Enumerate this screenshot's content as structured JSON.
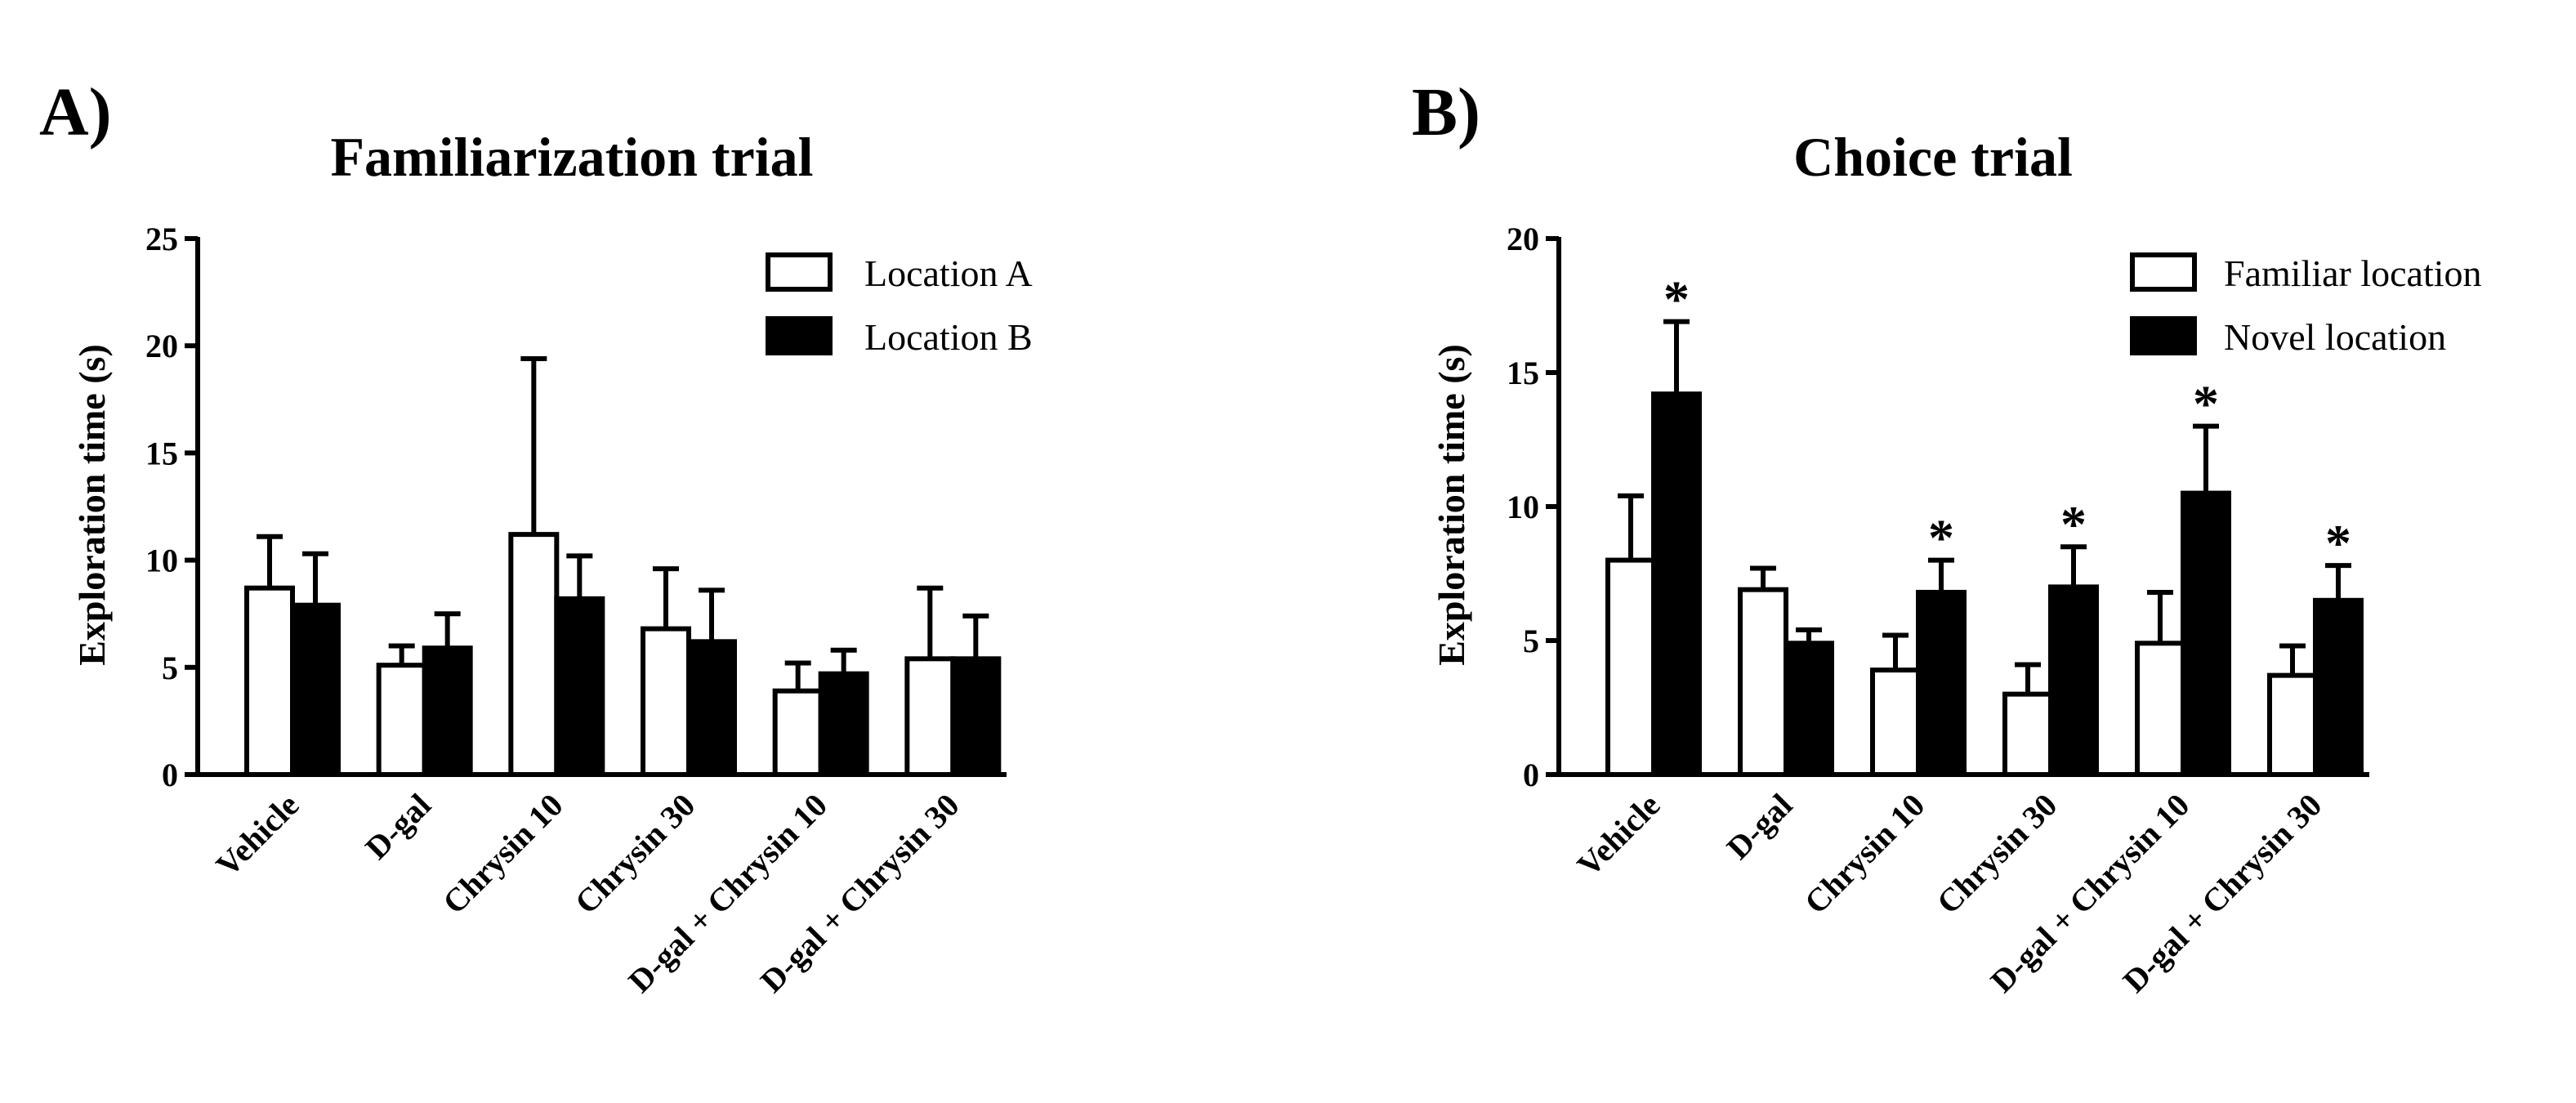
{
  "colors": {
    "open_bar": "#ffffff",
    "filled_bar": "#000000",
    "stroke": "#000000"
  },
  "chart_data": [
    {
      "type": "bar",
      "panel": "A)",
      "title": "Familiarization trial",
      "xlabel": "",
      "ylabel": "Exploration time (s)",
      "ylim": [
        0,
        25
      ],
      "yticks": [
        "0",
        "5",
        "10",
        "15",
        "20",
        "25"
      ],
      "categories": [
        "Vehicle",
        "D-gal",
        "Chrysin 10",
        "Chrysin 30",
        "D-gal + Chrysin 10",
        "D-gal + Chrysin 30"
      ],
      "legend_position": "top-right",
      "series": [
        {
          "name": "Location A",
          "fill": "open",
          "values": [
            8.7,
            5.1,
            11.2,
            6.8,
            3.9,
            5.4
          ],
          "errors": [
            2.4,
            0.9,
            8.2,
            2.8,
            1.3,
            3.3
          ]
        },
        {
          "name": "Location B",
          "fill": "filled",
          "values": [
            7.9,
            5.9,
            8.2,
            6.2,
            4.7,
            5.4
          ],
          "errors": [
            2.4,
            1.6,
            2.0,
            2.4,
            1.1,
            2.0
          ]
        }
      ],
      "significance": []
    },
    {
      "type": "bar",
      "panel": "B)",
      "title": "Choice trial",
      "xlabel": "",
      "ylabel": "Exploration time (s)",
      "ylim": [
        0,
        20
      ],
      "yticks": [
        "0",
        "5",
        "10",
        "15",
        "20"
      ],
      "categories": [
        "Vehicle",
        "D-gal",
        "Chrysin 10",
        "Chrysin 30",
        "D-gal + Chrysin 10",
        "D-gal + Chrysin 30"
      ],
      "legend_position": "top-right",
      "series": [
        {
          "name": "Familiar location",
          "fill": "open",
          "values": [
            8.0,
            6.9,
            3.9,
            3.0,
            4.9,
            3.7
          ],
          "errors": [
            2.4,
            0.8,
            1.3,
            1.1,
            1.9,
            1.1
          ]
        },
        {
          "name": "Novel location",
          "fill": "filled",
          "values": [
            14.2,
            4.9,
            6.8,
            7.0,
            10.5,
            6.5
          ],
          "errors": [
            2.7,
            0.5,
            1.2,
            1.5,
            2.5,
            1.3
          ]
        }
      ],
      "significance": [
        {
          "category_index": 0,
          "series_index": 1,
          "label": "*"
        },
        {
          "category_index": 2,
          "series_index": 1,
          "label": "*"
        },
        {
          "category_index": 3,
          "series_index": 1,
          "label": "*"
        },
        {
          "category_index": 4,
          "series_index": 1,
          "label": "*"
        },
        {
          "category_index": 5,
          "series_index": 1,
          "label": "*"
        }
      ]
    }
  ]
}
